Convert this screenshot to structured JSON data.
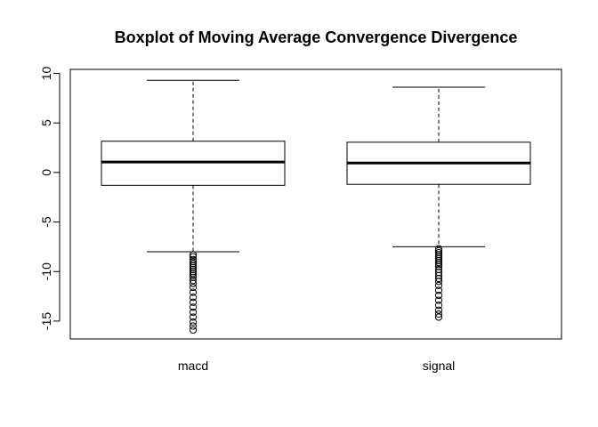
{
  "chart_data": {
    "type": "boxplot",
    "title": "Boxplot of Moving Average Convergence Divergence",
    "xlabel": "",
    "ylabel": "",
    "ylim": [
      -16.8,
      10.4
    ],
    "yticks": [
      10,
      5,
      0,
      -5,
      -10,
      -15
    ],
    "ytick_labels": [
      "10",
      "5",
      "0",
      "-5",
      "-10",
      "-15"
    ],
    "categories": [
      "macd",
      "signal"
    ],
    "boxes": [
      {
        "name": "macd",
        "whisker_low": -8.0,
        "q1": -1.3,
        "median": 1.05,
        "q3": 3.15,
        "whisker_high": 9.3,
        "outliers": [
          -8.3,
          -8.5,
          -8.8,
          -9.0,
          -9.2,
          -9.4,
          -9.6,
          -9.8,
          -10.0,
          -10.2,
          -10.4,
          -10.6,
          -10.9,
          -11.2,
          -11.6,
          -12.1,
          -12.6,
          -13.1,
          -13.6,
          -14.1,
          -14.6,
          -15.1,
          -15.5,
          -15.9
        ]
      },
      {
        "name": "signal",
        "whisker_low": -7.5,
        "q1": -1.2,
        "median": 0.95,
        "q3": 3.05,
        "whisker_high": 8.6,
        "outliers": [
          -7.7,
          -7.9,
          -8.1,
          -8.3,
          -8.5,
          -8.7,
          -8.9,
          -9.1,
          -9.3,
          -9.5,
          -9.8,
          -10.1,
          -10.4,
          -10.7,
          -11.0,
          -11.4,
          -11.9,
          -12.4,
          -12.9,
          -13.4,
          -13.9,
          -14.3,
          -14.6
        ]
      }
    ]
  }
}
